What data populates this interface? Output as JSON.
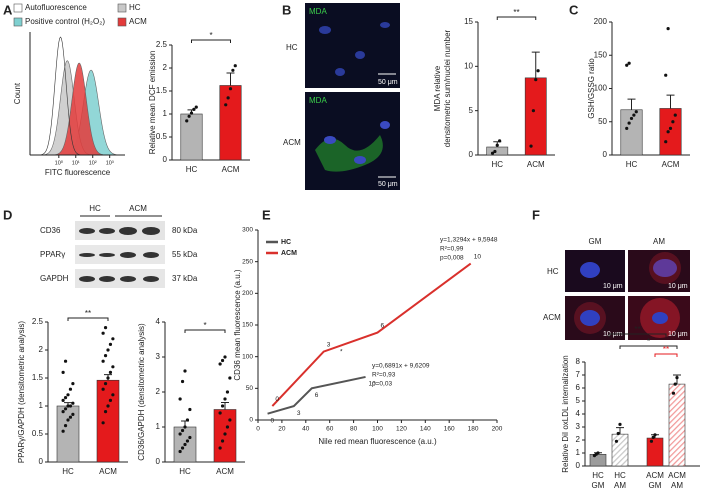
{
  "panel_letters": [
    "A",
    "B",
    "C",
    "D",
    "E",
    "F"
  ],
  "panel_b": {
    "stain_labels": [
      "MDA",
      "MDA"
    ],
    "rows": [
      "HC",
      "ACM"
    ],
    "scale_bars": [
      "50 μm",
      "50 μm"
    ]
  },
  "panel_d": {
    "groups": [
      "HC",
      "ACM"
    ],
    "rows": [
      {
        "name": "CD36",
        "size": "80 kDa"
      },
      {
        "name": "PPARγ",
        "size": "55 kDa"
      },
      {
        "name": "GAPDH",
        "size": "37 kDa"
      }
    ]
  },
  "panel_f": {
    "columns": [
      "GM",
      "AM"
    ],
    "rows": [
      "HC",
      "ACM"
    ],
    "scale_bars": [
      "10 μm",
      "10 μm",
      "10 μm",
      "10 μm"
    ]
  },
  "chart_data": [
    {
      "type": "flow",
      "series": [
        {
          "name": "Autofluorescence",
          "color": "#ffffff"
        },
        {
          "name": "HC",
          "color": "#c8c8c8"
        },
        {
          "name": "Positive control (H₂O₂)",
          "color": "#7fd0d0"
        },
        {
          "name": "ACM",
          "color": "#e33b3b"
        }
      ],
      "xlabel": "FITC fluorescence",
      "ylabel": "Count",
      "xscale": "log",
      "xlim": [
        0.02,
        8000
      ],
      "xticks": [
        {
          "value": 1,
          "label": "10⁰"
        },
        {
          "value": 10,
          "label": "10¹"
        },
        {
          "value": 100,
          "label": "10²"
        },
        {
          "value": 1000,
          "label": "10³"
        }
      ]
    },
    {
      "type": "bar",
      "ylabel": "Relative mean DCF emission",
      "categories": [
        "HC",
        "ACM"
      ],
      "values": [
        1.0,
        1.62
      ],
      "errors": [
        0.09,
        0.27
      ],
      "points": [
        [
          0.85,
          0.95,
          1.02,
          1.1,
          1.15
        ],
        [
          1.2,
          1.35,
          1.55,
          1.95,
          2.05
        ]
      ],
      "colors": [
        "#b4b4b4",
        "#e41a1c"
      ],
      "ylim": [
        0,
        2.5
      ],
      "yticks": [
        0,
        0.5,
        1,
        1.5,
        2,
        2.5
      ],
      "significance": [
        "*"
      ]
    },
    {
      "type": "bar",
      "ylabel": [
        "MDA relative",
        "densitometric sum/nuclei number"
      ],
      "categories": [
        "HC",
        "ACM"
      ],
      "values": [
        0.9,
        8.7
      ],
      "errors": [
        0.6,
        2.9
      ],
      "points": [
        [
          0.2,
          0.4,
          1.1,
          1.6
        ],
        [
          1,
          5,
          8.5,
          9.5
        ]
      ],
      "colors": [
        "#b4b4b4",
        "#e41a1c"
      ],
      "ylim": [
        0,
        15
      ],
      "yticks": [
        0,
        5,
        10,
        15
      ],
      "significance": [
        "**"
      ]
    },
    {
      "type": "bar",
      "ylabel": "GSH/GSSG ratio",
      "categories": [
        "HC",
        "ACM"
      ],
      "values": [
        68,
        70
      ],
      "errors": [
        16,
        20
      ],
      "points": [
        [
          40,
          48,
          55,
          60,
          65,
          135,
          138
        ],
        [
          20,
          35,
          40,
          50,
          60,
          120,
          190
        ]
      ],
      "colors": [
        "#b4b4b4",
        "#e41a1c"
      ],
      "ylim": [
        0,
        200
      ],
      "yticks": [
        0,
        50,
        100,
        150,
        200
      ]
    },
    {
      "type": "bar",
      "ylabel": "PPARγ/GAPDH (densitometric analysis)",
      "categories": [
        "HC",
        "ACM"
      ],
      "values": [
        1.0,
        1.46
      ],
      "errors": [
        0.06,
        0.1
      ],
      "points": [
        [
          0.55,
          0.65,
          0.75,
          0.8,
          0.85,
          0.9,
          0.95,
          1.0,
          1.0,
          1.05,
          1.1,
          1.15,
          1.2,
          1.3,
          1.4,
          1.6,
          1.8
        ],
        [
          0.7,
          0.9,
          1.0,
          1.1,
          1.2,
          1.3,
          1.4,
          1.5,
          1.6,
          1.7,
          1.8,
          1.9,
          2.0,
          2.1,
          2.2,
          2.3,
          2.4
        ]
      ],
      "colors": [
        "#b4b4b4",
        "#e41a1c"
      ],
      "ylim": [
        0,
        2.5
      ],
      "yticks": [
        0,
        0.5,
        1,
        1.5,
        2,
        2.5
      ],
      "significance": [
        "**"
      ]
    },
    {
      "type": "bar",
      "ylabel": "CD36/GAPDH (densitometric analysis)",
      "categories": [
        "HC",
        "ACM"
      ],
      "values": [
        1.0,
        1.5
      ],
      "errors": [
        0.17,
        0.2
      ],
      "points": [
        [
          0.3,
          0.4,
          0.5,
          0.6,
          0.7,
          0.8,
          0.9,
          1.0,
          1.2,
          1.5,
          1.8,
          2.3,
          2.6
        ],
        [
          0.4,
          0.6,
          0.8,
          1.0,
          1.2,
          1.4,
          1.6,
          1.8,
          2.0,
          2.4,
          2.8,
          2.9,
          3.0
        ]
      ],
      "colors": [
        "#b4b4b4",
        "#e41a1c"
      ],
      "ylim": [
        0,
        4
      ],
      "yticks": [
        0,
        1,
        2,
        3,
        4
      ],
      "significance": [
        "*"
      ]
    },
    {
      "type": "line",
      "xlabel": "Nile red mean fluorescence (a.u.)",
      "ylabel": "CD36 mean fluorescence (a.u.)",
      "xlim": [
        0,
        200
      ],
      "xticks": [
        0,
        20,
        40,
        60,
        80,
        100,
        120,
        140,
        160,
        180,
        200
      ],
      "ylim": [
        0,
        300
      ],
      "yticks": [
        0,
        50,
        100,
        150,
        200,
        250,
        300
      ],
      "legend": "upper left",
      "series": [
        {
          "name": "HC",
          "color": "#555555",
          "x": [
            8,
            30,
            45,
            90
          ],
          "values": [
            10,
            22,
            50,
            68
          ],
          "point_labels": [
            0,
            3,
            6,
            10
          ]
        },
        {
          "name": "ACM",
          "color": "#d9302c",
          "x": [
            12,
            55,
            100,
            178
          ],
          "values": [
            22,
            108,
            138,
            247
          ],
          "point_labels": [
            0,
            3,
            6,
            10
          ]
        }
      ],
      "annotations": [
        "y=1,3294x + 9,5948",
        "R²=0,99",
        "p=0,008",
        "y=0,6891x + 9,6209",
        "R²=0,93",
        "p=0,03",
        "*"
      ]
    },
    {
      "type": "bar",
      "ylabel": "Relative DiI oxLDL internalization",
      "categories": [
        "HC",
        "HC",
        "ACM",
        "ACM"
      ],
      "subcategories": [
        "GM",
        "AM",
        "GM",
        "AM"
      ],
      "values": [
        0.9,
        2.45,
        2.15,
        6.3
      ],
      "errors": [
        0.12,
        0.5,
        0.25,
        0.7
      ],
      "points": [
        [
          0.8,
          0.9,
          1.0
        ],
        [
          1.9,
          2.5,
          3.2
        ],
        [
          1.9,
          2.2,
          2.4
        ],
        [
          5.6,
          6.3,
          6.8
        ]
      ],
      "colors": [
        "#9c9c9c",
        "#c8c8c8",
        "#e41a1c",
        "#f29a9a"
      ],
      "hatched": [
        false,
        true,
        false,
        true
      ],
      "ylim": [
        0,
        8
      ],
      "yticks": [
        0,
        1,
        2,
        3,
        4,
        5,
        6,
        7,
        8
      ],
      "significance": [
        "**",
        "*",
        "**"
      ],
      "significance_colors": [
        "#222222",
        "#222222",
        "#e41a1c"
      ]
    }
  ]
}
